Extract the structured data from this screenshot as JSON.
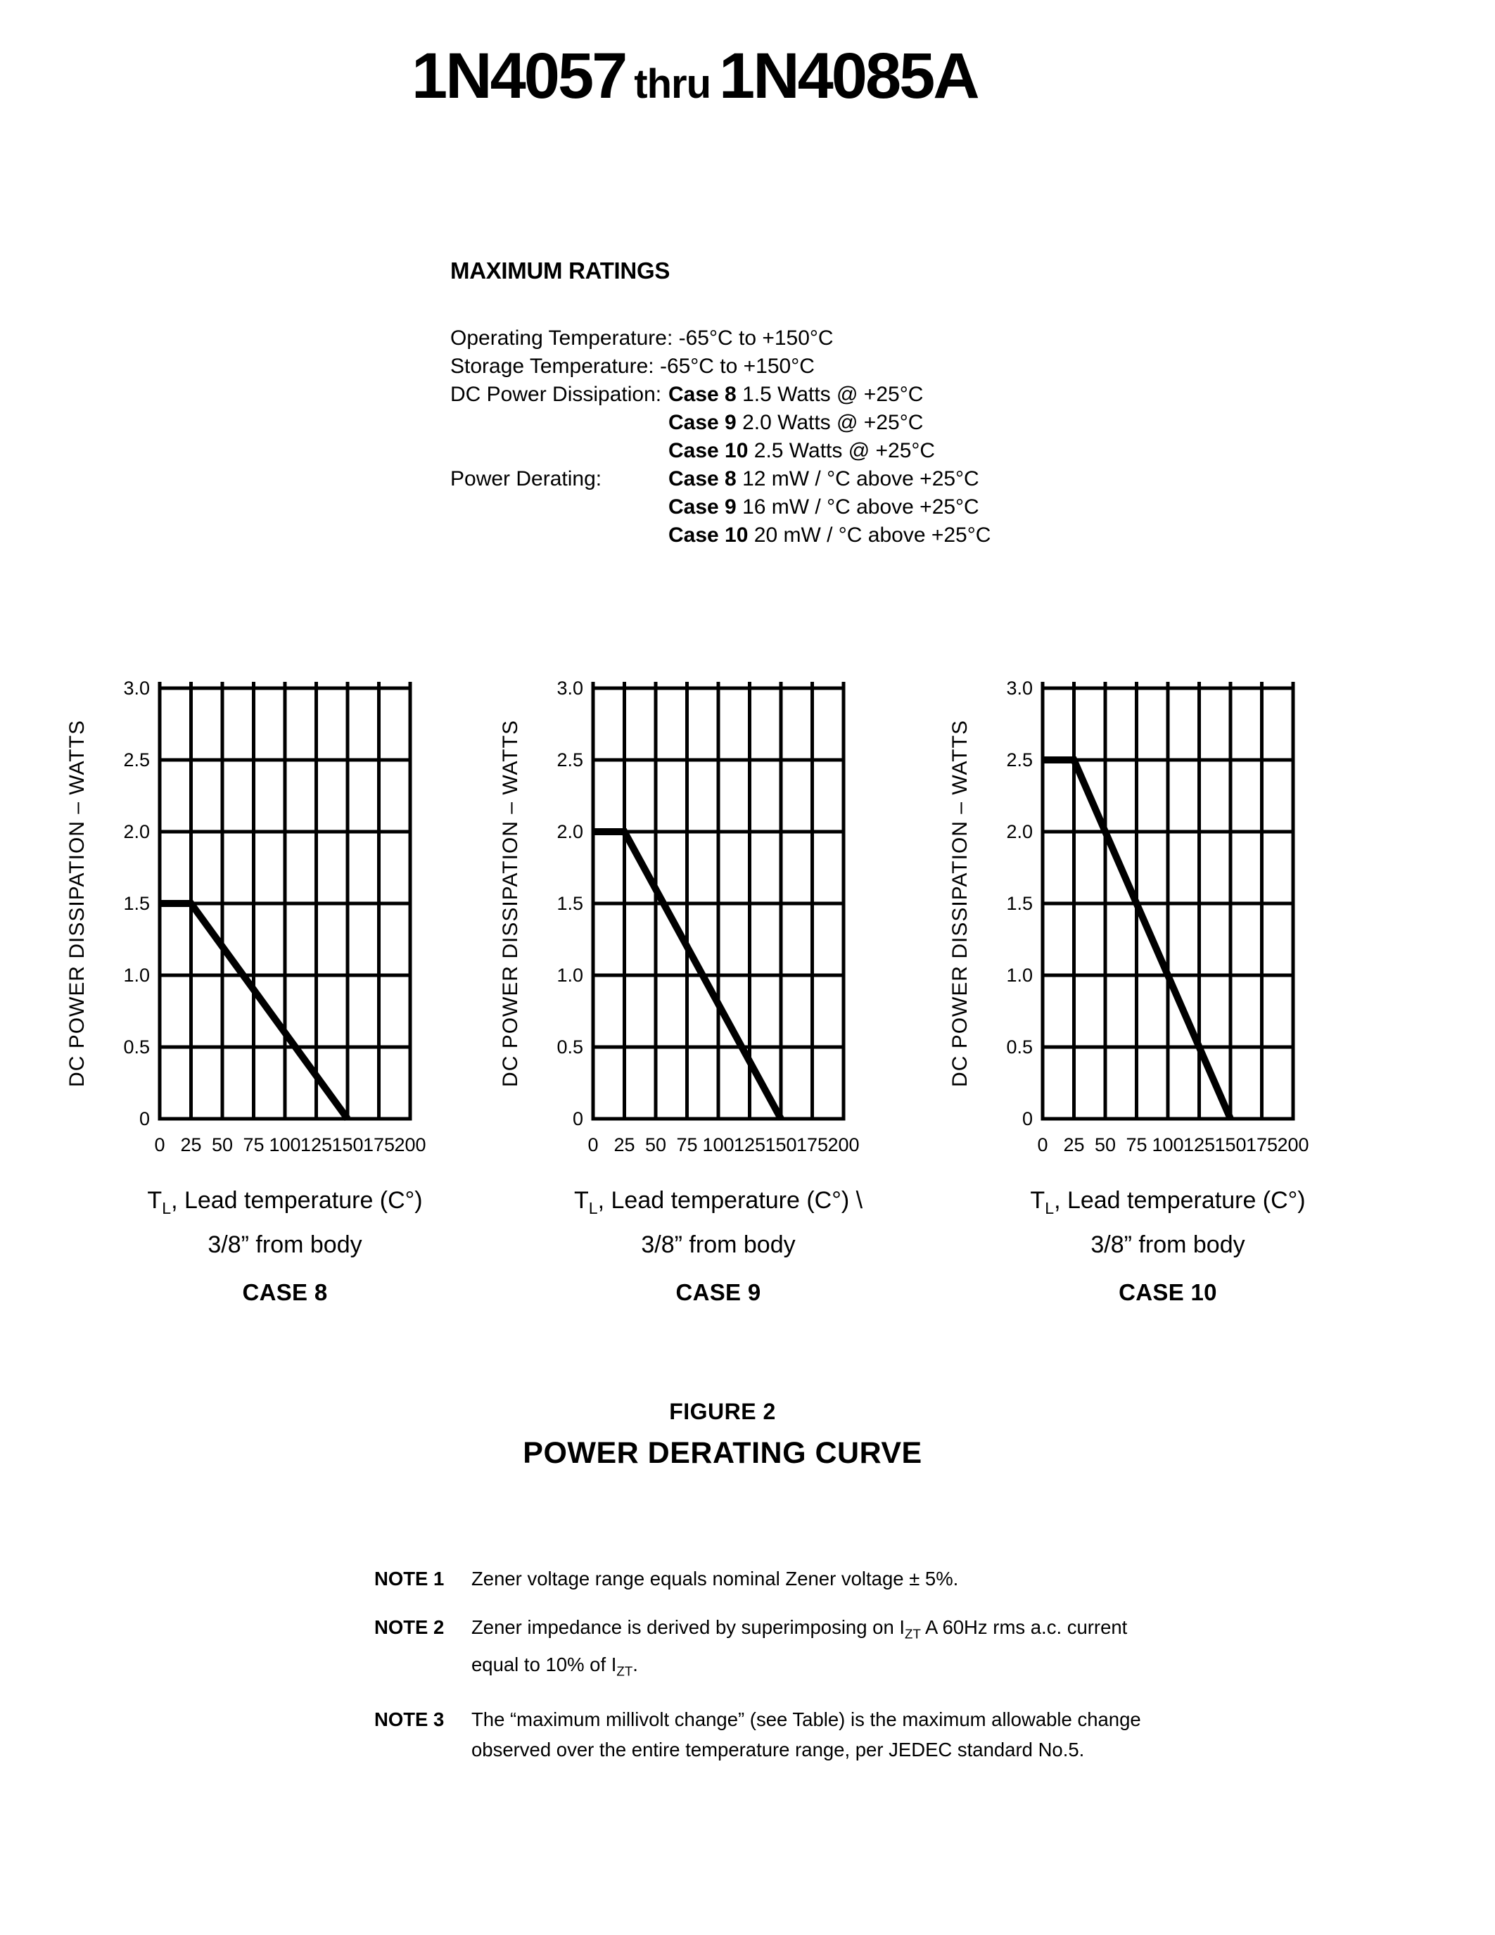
{
  "page": {
    "title": {
      "part1": "1N4057",
      "thru": "thru",
      "part2": "1N4085A"
    }
  },
  "ratings": {
    "heading": "MAXIMUM RATINGS",
    "operating": "Operating Temperature: -65°C to +150°C",
    "storage": "Storage Temperature: -65°C to +150°C",
    "dissipation_label": "DC Power Dissipation:",
    "dissipation": [
      {
        "case": "Case 8",
        "value": " 1.5 Watts @ +25°C"
      },
      {
        "case": "Case 9",
        "value": " 2.0 Watts @ +25°C"
      },
      {
        "case": "Case 10",
        "value": " 2.5 Watts @ +25°C"
      }
    ],
    "derating_label": "Power Derating:",
    "derating": [
      {
        "case": "Case 8",
        "value": " 12 mW / °C above +25°C"
      },
      {
        "case": "Case 9",
        "value": " 16 mW / °C above +25°C"
      },
      {
        "case": "Case 10",
        "value": " 20 mW / °C above +25°C"
      }
    ]
  },
  "figure": {
    "number": "FIGURE 2",
    "title": "POWER DERATING CURVE"
  },
  "chart_data": [
    {
      "type": "line",
      "case_label": "CASE 8",
      "ylabel": "DC POWER DISSIPATION – WATTS",
      "xlabel_t": "T",
      "xlabel_sub": "L",
      "xlabel_rest": ", Lead temperature (C°)",
      "xlabel_line2": "3/8” from body",
      "xlim": [
        0,
        200
      ],
      "ylim": [
        0,
        3.0
      ],
      "x_tick_values": [
        0,
        25,
        50,
        75,
        100,
        125,
        150,
        175,
        200
      ],
      "x_tick_labels": [
        "0",
        "25",
        "50",
        "75",
        "100",
        "125",
        "150",
        "175",
        "200"
      ],
      "y_tick_values": [
        0,
        0.5,
        1.0,
        1.5,
        2.0,
        2.5,
        3.0
      ],
      "y_tick_labels": [
        "0",
        "0.5",
        "1.0",
        "1.5",
        "2.0",
        "2.5",
        "3.0"
      ],
      "grid": true,
      "legend": "none",
      "series": [
        {
          "name": "Case 8 power derating",
          "points": [
            [
              0,
              1.5
            ],
            [
              25,
              1.5
            ],
            [
              150,
              0
            ]
          ]
        }
      ]
    },
    {
      "type": "line",
      "case_label": "CASE 9",
      "ylabel": "DC POWER DISSIPATION – WATTS",
      "xlabel_t": "T",
      "xlabel_sub": "L",
      "xlabel_rest": ", Lead temperature (C°)  \\",
      "xlabel_line2": "3/8” from body",
      "xlim": [
        0,
        200
      ],
      "ylim": [
        0,
        3.0
      ],
      "x_tick_values": [
        0,
        25,
        50,
        75,
        100,
        125,
        150,
        175,
        200
      ],
      "x_tick_labels": [
        "0",
        "25",
        "50",
        "75",
        "100",
        "125",
        "150",
        "175",
        "200"
      ],
      "y_tick_values": [
        0,
        0.5,
        1.0,
        1.5,
        2.0,
        2.5,
        3.0
      ],
      "y_tick_labels": [
        "0",
        "0.5",
        "1.0",
        "1.5",
        "2.0",
        "2.5",
        "3.0"
      ],
      "grid": true,
      "legend": "none",
      "series": [
        {
          "name": "Case 9 power derating",
          "points": [
            [
              0,
              2.0
            ],
            [
              25,
              2.0
            ],
            [
              150,
              0
            ]
          ]
        }
      ]
    },
    {
      "type": "line",
      "case_label": "CASE 10",
      "ylabel": "DC POWER DISSIPATION – WATTS",
      "xlabel_t": "T",
      "xlabel_sub": "L",
      "xlabel_rest": ", Lead temperature (C°)",
      "xlabel_line2": "3/8” from body",
      "xlim": [
        0,
        200
      ],
      "ylim": [
        0,
        3.0
      ],
      "x_tick_values": [
        0,
        25,
        50,
        75,
        100,
        125,
        150,
        175,
        200
      ],
      "x_tick_labels": [
        "0",
        "25",
        "50",
        "75",
        "100",
        "125",
        "150",
        "175",
        "200"
      ],
      "y_tick_values": [
        0,
        0.5,
        1.0,
        1.5,
        2.0,
        2.5,
        3.0
      ],
      "y_tick_labels": [
        "0",
        "0.5",
        "1.0",
        "1.5",
        "2.0",
        "2.5",
        "3.0"
      ],
      "grid": true,
      "legend": "none",
      "series": [
        {
          "name": "Case 10 power derating",
          "points": [
            [
              0,
              2.5
            ],
            [
              25,
              2.5
            ],
            [
              150,
              0
            ]
          ]
        }
      ]
    }
  ],
  "notes": {
    "n1": {
      "label": "NOTE 1",
      "text": "Zener voltage range equals nominal Zener voltage ± 5%."
    },
    "n2": {
      "label": "NOTE 2",
      "p1": "Zener impedance is derived by superimposing on I",
      "s1": "ZT",
      "p2": " A 60Hz rms a.c. current",
      "p3": "equal to 10% of I",
      "s2": "ZT",
      "p4": "."
    },
    "n3": {
      "label": "NOTE 3",
      "line1": "The “maximum millivolt change” (see Table) is the maximum allowable change",
      "line2": "observed over the entire temperature range, per JEDEC standard No.5."
    }
  }
}
